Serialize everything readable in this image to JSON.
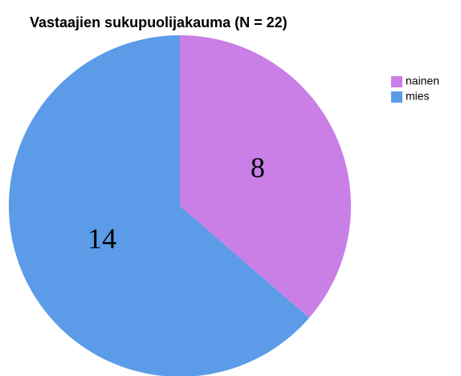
{
  "chart_data": {
    "type": "pie",
    "title": "Vastaajien sukupuolijakauma (N = 22)",
    "categories": [
      "nainen",
      "mies"
    ],
    "values": [
      8,
      14
    ],
    "colors": [
      "#c97fe6",
      "#5b9be8"
    ],
    "legend": "right"
  }
}
